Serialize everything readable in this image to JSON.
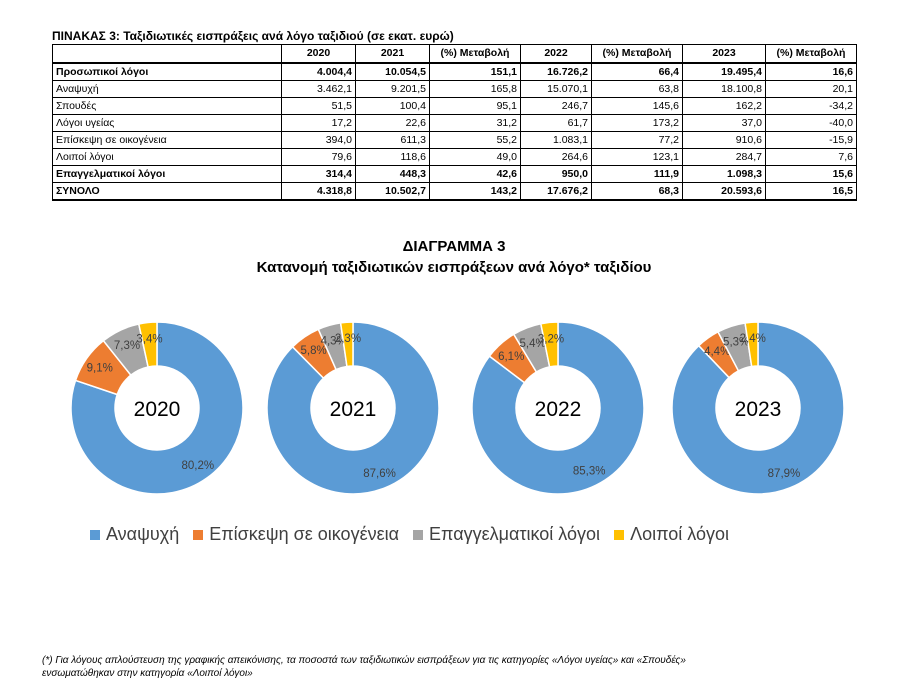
{
  "table": {
    "title": "ΠΙΝΑΚΑΣ 3: Ταξιδιωτικές εισπράξεις ανά λόγο ταξιδιού (σε εκατ. ευρώ)",
    "headers": [
      "",
      "2020",
      "2021",
      "(%) Μεταβολή",
      "2022",
      "(%) Μεταβολή",
      "2023",
      "(%) Μεταβολή"
    ],
    "rows": [
      {
        "label": "Προσωπικοί λόγοι",
        "values": [
          "4.004,4",
          "10.054,5",
          "151,1",
          "16.726,2",
          "66,4",
          "19.495,4",
          "16,6"
        ]
      },
      {
        "label": "Αναψυχή",
        "values": [
          "3.462,1",
          "9.201,5",
          "165,8",
          "15.070,1",
          "63,8",
          "18.100,8",
          "20,1"
        ]
      },
      {
        "label": "Σπουδές",
        "values": [
          "51,5",
          "100,4",
          "95,1",
          "246,7",
          "145,6",
          "162,2",
          "-34,2"
        ]
      },
      {
        "label": "Λόγοι υγείας",
        "values": [
          "17,2",
          "22,6",
          "31,2",
          "61,7",
          "173,2",
          "37,0",
          "-40,0"
        ]
      },
      {
        "label": "Επίσκεψη σε οικογένεια",
        "values": [
          "394,0",
          "611,3",
          "55,2",
          "1.083,1",
          "77,2",
          "910,6",
          "-15,9"
        ]
      },
      {
        "label": "Λοιποί λόγοι",
        "values": [
          "79,6",
          "118,6",
          "49,0",
          "264,6",
          "123,1",
          "284,7",
          "7,6"
        ]
      },
      {
        "label": "Επαγγελματικοί λόγοι",
        "values": [
          "314,4",
          "448,3",
          "42,6",
          "950,0",
          "111,9",
          "1.098,3",
          "15,6"
        ]
      },
      {
        "label": "ΣΥΝΟΛΟ",
        "values": [
          "4.318,8",
          "10.502,7",
          "143,2",
          "17.676,2",
          "68,3",
          "20.593,6",
          "16,5"
        ]
      }
    ]
  },
  "diagram": {
    "title": "ΔΙΑΓΡΑΜΜΑ 3",
    "subtitle": "Κατανομή ταξιδιωτικών εισπράξεων ανά λόγο* ταξιδίου"
  },
  "legend": [
    {
      "label": "Αναψυχή",
      "color": "#5B9BD5"
    },
    {
      "label": "Επίσκεψη σε οικογένεια",
      "color": "#ED7D31"
    },
    {
      "label": "Επαγγελματικοί λόγοι",
      "color": "#A5A5A5"
    },
    {
      "label": "Λοιποί λόγοι",
      "color": "#FFC000"
    }
  ],
  "chart_data": [
    {
      "type": "pie",
      "center_label": "2020",
      "categories": [
        "Αναψυχή",
        "Επίσκεψη σε οικογένεια",
        "Επαγγελματικοί λόγοι",
        "Λοιποί λόγοι"
      ],
      "values": [
        80.2,
        9.1,
        7.3,
        3.4
      ],
      "labels": [
        "80,2%",
        "9,1%",
        "7,3%",
        "3,4%"
      ]
    },
    {
      "type": "pie",
      "center_label": "2021",
      "categories": [
        "Αναψυχή",
        "Επίσκεψη σε οικογένεια",
        "Επαγγελματικοί λόγοι",
        "Λοιποί λόγοι"
      ],
      "values": [
        87.6,
        5.8,
        4.3,
        2.3
      ],
      "labels": [
        "87,6%",
        "5,8%",
        "4,3%",
        "2,3%"
      ]
    },
    {
      "type": "pie",
      "center_label": "2022",
      "categories": [
        "Αναψυχή",
        "Επίσκεψη σε οικογένεια",
        "Επαγγελματικοί λόγοι",
        "Λοιποί λόγοι"
      ],
      "values": [
        85.3,
        6.1,
        5.4,
        3.2
      ],
      "labels": [
        "85,3%",
        "6,1%",
        "5,4%",
        "3,2%"
      ]
    },
    {
      "type": "pie",
      "center_label": "2023",
      "categories": [
        "Αναψυχή",
        "Επίσκεψη σε οικογένεια",
        "Επαγγελματικοί λόγοι",
        "Λοιποί λόγοι"
      ],
      "values": [
        87.9,
        4.4,
        5.3,
        2.4
      ],
      "labels": [
        "87,9%",
        "4,4%",
        "5,3%",
        "2,4%"
      ]
    }
  ],
  "footnote": {
    "line1": "(*) Για λόγους απλούστευση της γραφικής απεικόνισης, τα ποσοστά των ταξιδιωτικών εισπράξεων για τις κατηγορίες «Λόγοι υγείας» και «Σπουδές»",
    "line2": "ενσωματώθηκαν στην κατηγορία «Λοιποί λόγοι»"
  }
}
